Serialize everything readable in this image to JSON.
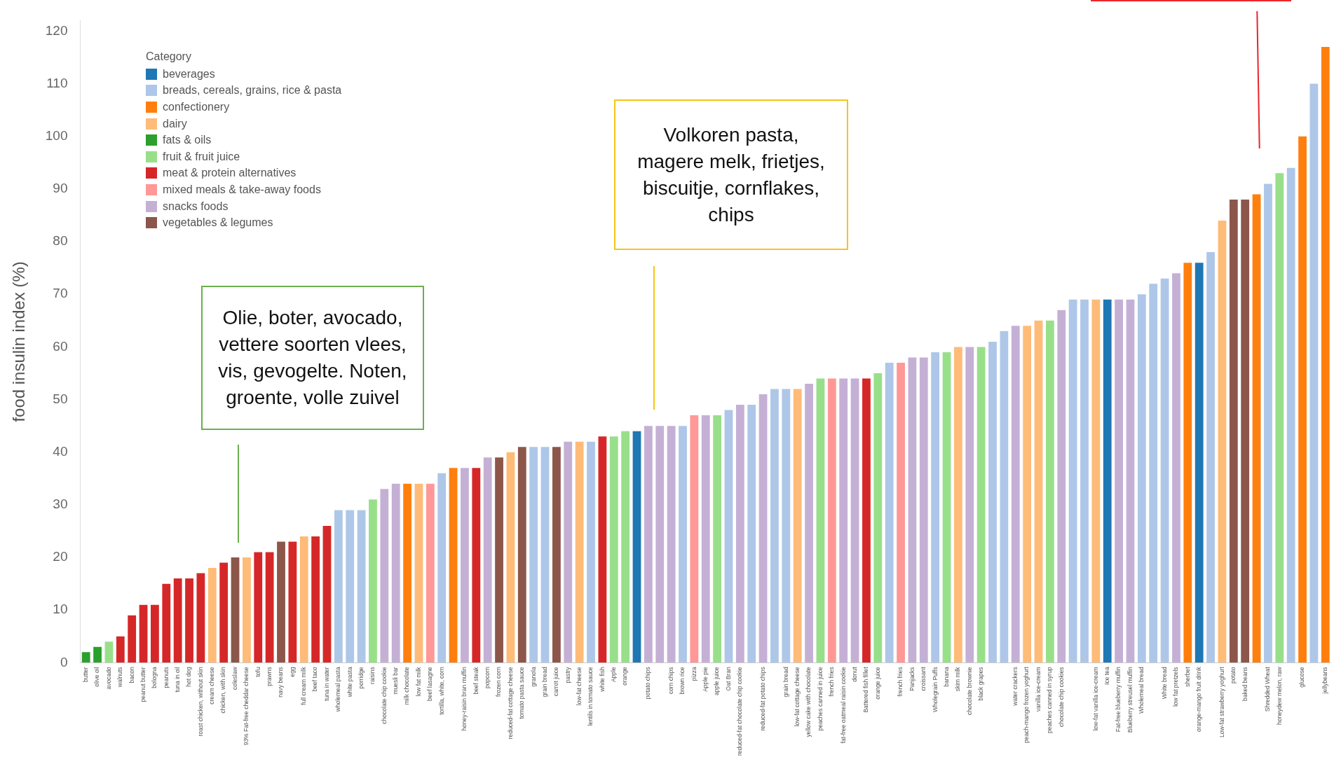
{
  "chart_data": {
    "type": "bar",
    "ylabel": "food insulin index (%)",
    "legend_title": "Category",
    "legend": "top left",
    "grid": false,
    "ylim": [
      0,
      122
    ],
    "yticks": [
      0,
      10,
      20,
      30,
      40,
      50,
      60,
      70,
      80,
      90,
      100,
      110,
      120
    ],
    "categories": [
      "butter",
      "olive oil",
      "avocado",
      "walnuts",
      "bacon",
      "peanut butter",
      "bologna",
      "peanuts",
      "tuna in oil",
      "hot dog",
      "roast chicken, without skin",
      "cream cheese",
      "chicken, with skin",
      "coleslaw",
      "93% Fat-free cheddar cheese",
      "tofu",
      "prawns",
      "navy beans",
      "egg",
      "full cream milk",
      "beef taco",
      "tuna in water",
      "wholemeal pasta",
      "white pasta",
      "porridge",
      "raisins",
      "chocolate chip cookie",
      "muesli bar",
      "milk chocolate",
      "low fat milk",
      "beef lasagne",
      "tortilla, white, corn",
      null,
      "honey-raisin bran muffin",
      "beef steak",
      "popcorn",
      "frozen corn",
      "reduced-fat cottage cheese",
      "tomato pasta sauce",
      "granola",
      "grain bread",
      "carrot juice",
      "pastry",
      "low-fat cheese",
      "lentils in tomato sauce",
      "white fish",
      "Apple",
      "orange",
      null,
      "potato chips",
      null,
      "corn chips",
      "brown rice",
      "pizza",
      "Apple pie",
      "apple juice",
      "Oat Bran",
      "reduced-fat chocolate chip cookie",
      null,
      "reduced-fat potato chips",
      null,
      "grain bread",
      "low-fat cottage cheese",
      "yellow cake with chocolate",
      "peaches canned in juice",
      "french fries",
      "fat-free oatmeal raisin cookie",
      "donut",
      "Battered fish fillet",
      "orange juice",
      null,
      "french fries",
      "Panjacks",
      "croissant",
      "Wholegrain Puffs",
      "banana",
      "skim milk",
      "chocolate brownie",
      "black grapes",
      null,
      null,
      "water crackers",
      "peach-mango frozen yoghurt",
      "vanilla ice-cream",
      "peaches canned in syrup",
      "chocolate chip cookies",
      null,
      null,
      "low-fat vanilla ice-cream",
      "Ice tea",
      "Fat-free blueberry muffin",
      "Blueberry streusel muffin",
      "Wholemeal bread",
      null,
      "White bread",
      "low fat pretzels",
      "sherbet",
      "orange-mango fruit drink",
      null,
      "Low-fat strawberry yoghurt",
      "potato",
      "baked beans",
      null,
      "Shredded Wheat",
      "honeydew melon, raw",
      null,
      "glucose",
      null,
      "jellybeans"
    ],
    "series": [
      {
        "name": "beverages",
        "color": "#1f77b4",
        "values": [
          null,
          null,
          null,
          null,
          null,
          null,
          null,
          null,
          null,
          null,
          null,
          null,
          null,
          null,
          null,
          null,
          null,
          null,
          null,
          null,
          null,
          null,
          null,
          null,
          null,
          null,
          null,
          null,
          null,
          null,
          null,
          null,
          null,
          null,
          null,
          null,
          null,
          null,
          null,
          null,
          null,
          null,
          null,
          null,
          null,
          null,
          null,
          null,
          44,
          null,
          null,
          null,
          null,
          null,
          null,
          null,
          null,
          null,
          null,
          null,
          null,
          null,
          null,
          null,
          null,
          null,
          null,
          null,
          null,
          null,
          null,
          null,
          null,
          null,
          null,
          null,
          null,
          null,
          null,
          null,
          null,
          null,
          null,
          null,
          null,
          null,
          null,
          null,
          null,
          69,
          null,
          null,
          null,
          null,
          null,
          null,
          null,
          76,
          null,
          null,
          null,
          null,
          null,
          null,
          null,
          null,
          null,
          null,
          null
        ]
      },
      {
        "name": "breads, cereals, grains, rice & pasta",
        "color": "#aec7e8",
        "values": [
          null,
          null,
          null,
          null,
          null,
          null,
          null,
          null,
          null,
          null,
          null,
          null,
          null,
          null,
          null,
          null,
          null,
          null,
          null,
          null,
          null,
          null,
          29,
          29,
          29,
          null,
          null,
          null,
          null,
          null,
          null,
          36,
          null,
          null,
          null,
          null,
          null,
          null,
          null,
          41,
          41,
          null,
          null,
          null,
          42,
          null,
          null,
          null,
          null,
          null,
          null,
          null,
          45,
          null,
          null,
          null,
          48,
          null,
          49,
          null,
          52,
          52,
          null,
          null,
          null,
          null,
          null,
          null,
          null,
          null,
          57,
          null,
          null,
          null,
          59,
          null,
          null,
          null,
          null,
          61,
          63,
          null,
          null,
          null,
          null,
          null,
          69,
          69,
          null,
          null,
          null,
          null,
          70,
          72,
          73,
          null,
          null,
          null,
          78,
          null,
          null,
          null,
          null,
          91,
          null,
          94,
          null,
          110,
          null
        ]
      },
      {
        "name": "confectionery",
        "color": "#ff7f0e",
        "values": [
          null,
          null,
          null,
          null,
          null,
          null,
          null,
          null,
          null,
          null,
          null,
          null,
          null,
          null,
          null,
          null,
          null,
          null,
          null,
          null,
          null,
          null,
          null,
          null,
          null,
          null,
          null,
          null,
          34,
          null,
          null,
          null,
          37,
          null,
          null,
          null,
          null,
          null,
          null,
          null,
          null,
          null,
          null,
          null,
          null,
          null,
          null,
          null,
          null,
          null,
          null,
          null,
          null,
          null,
          null,
          null,
          null,
          null,
          null,
          null,
          null,
          null,
          null,
          null,
          null,
          null,
          null,
          null,
          null,
          null,
          null,
          null,
          null,
          null,
          null,
          null,
          null,
          null,
          null,
          null,
          null,
          null,
          null,
          null,
          null,
          null,
          null,
          null,
          null,
          null,
          null,
          null,
          null,
          null,
          null,
          null,
          76,
          null,
          null,
          null,
          null,
          null,
          89,
          null,
          null,
          null,
          100,
          null,
          117
        ]
      },
      {
        "name": "dairy",
        "color": "#ffbb78",
        "values": [
          null,
          null,
          null,
          null,
          null,
          null,
          null,
          null,
          null,
          null,
          null,
          18,
          null,
          null,
          20,
          null,
          null,
          null,
          null,
          24,
          null,
          null,
          null,
          null,
          null,
          null,
          null,
          null,
          null,
          34,
          null,
          null,
          null,
          null,
          null,
          null,
          null,
          40,
          null,
          null,
          null,
          null,
          null,
          42,
          null,
          null,
          null,
          null,
          null,
          null,
          null,
          null,
          null,
          null,
          null,
          null,
          null,
          null,
          null,
          null,
          null,
          null,
          52,
          null,
          null,
          null,
          null,
          null,
          null,
          null,
          null,
          null,
          null,
          null,
          null,
          null,
          60,
          null,
          null,
          null,
          null,
          null,
          64,
          65,
          null,
          null,
          null,
          null,
          69,
          null,
          null,
          null,
          null,
          null,
          null,
          null,
          null,
          null,
          null,
          84,
          null,
          null,
          null,
          null,
          null,
          null,
          null,
          null,
          null
        ]
      },
      {
        "name": "fats & oils",
        "color": "#2ca02c",
        "values": [
          2,
          3,
          null,
          null,
          null,
          null,
          null,
          null,
          null,
          null,
          null,
          null,
          null,
          null,
          null,
          null,
          null,
          null,
          null,
          null,
          null,
          null,
          null,
          null,
          null,
          null,
          null,
          null,
          null,
          null,
          null,
          null,
          null,
          null,
          null,
          null,
          null,
          null,
          null,
          null,
          null,
          null,
          null,
          null,
          null,
          null,
          null,
          null,
          null,
          null,
          null,
          null,
          null,
          null,
          null,
          null,
          null,
          null,
          null,
          null,
          null,
          null,
          null,
          null,
          null,
          null,
          null,
          null,
          null,
          null,
          null,
          null,
          null,
          null,
          null,
          null,
          null,
          null,
          null,
          null,
          null,
          null,
          null,
          null,
          null,
          null,
          null,
          null,
          null,
          null,
          null,
          null,
          null,
          null,
          null,
          null,
          null,
          null,
          null,
          null,
          null,
          null,
          null,
          null,
          null,
          null,
          null,
          null,
          null
        ]
      },
      {
        "name": "fruit & fruit juice",
        "color": "#98df8a",
        "values": [
          null,
          null,
          4,
          null,
          null,
          null,
          null,
          null,
          null,
          null,
          null,
          null,
          null,
          null,
          null,
          null,
          null,
          null,
          null,
          null,
          null,
          null,
          null,
          null,
          null,
          31,
          null,
          null,
          null,
          null,
          null,
          null,
          null,
          null,
          null,
          null,
          null,
          null,
          null,
          null,
          null,
          null,
          null,
          null,
          null,
          null,
          43,
          44,
          null,
          null,
          null,
          null,
          null,
          null,
          null,
          47,
          null,
          null,
          null,
          null,
          null,
          null,
          null,
          null,
          54,
          null,
          null,
          null,
          null,
          55,
          null,
          null,
          null,
          null,
          null,
          59,
          null,
          null,
          60,
          null,
          null,
          null,
          null,
          null,
          65,
          null,
          null,
          null,
          null,
          null,
          null,
          null,
          null,
          null,
          null,
          null,
          null,
          null,
          null,
          null,
          null,
          null,
          null,
          null,
          93,
          null,
          null,
          null,
          null
        ]
      },
      {
        "name": "meat & protein alternatives",
        "color": "#d62728",
        "values": [
          null,
          null,
          null,
          5,
          9,
          11,
          11,
          15,
          16,
          16,
          17,
          null,
          19,
          null,
          null,
          21,
          21,
          null,
          23,
          null,
          24,
          26,
          null,
          null,
          null,
          null,
          null,
          null,
          null,
          null,
          null,
          null,
          null,
          null,
          37,
          null,
          null,
          null,
          null,
          null,
          null,
          null,
          null,
          null,
          null,
          43,
          null,
          null,
          null,
          null,
          null,
          null,
          null,
          null,
          null,
          null,
          null,
          null,
          null,
          null,
          null,
          null,
          null,
          null,
          null,
          null,
          null,
          null,
          54,
          null,
          null,
          null,
          null,
          null,
          null,
          null,
          null,
          null,
          null,
          null,
          null,
          null,
          null,
          null,
          null,
          null,
          null,
          null,
          null,
          null,
          null,
          null,
          null,
          null,
          null,
          null,
          null,
          null,
          null,
          null,
          null,
          null,
          null,
          null,
          null,
          null,
          null,
          null,
          null
        ]
      },
      {
        "name": "mixed meals & take-away foods",
        "color": "#ff9896",
        "values": [
          null,
          null,
          null,
          null,
          null,
          null,
          null,
          null,
          null,
          null,
          null,
          null,
          null,
          null,
          null,
          null,
          null,
          null,
          null,
          null,
          null,
          null,
          null,
          null,
          null,
          null,
          null,
          null,
          null,
          null,
          34,
          null,
          null,
          null,
          null,
          null,
          null,
          null,
          null,
          null,
          null,
          null,
          null,
          null,
          null,
          null,
          null,
          null,
          null,
          null,
          null,
          null,
          null,
          47,
          null,
          null,
          null,
          null,
          null,
          null,
          null,
          null,
          null,
          null,
          null,
          54,
          null,
          null,
          null,
          null,
          null,
          57,
          null,
          null,
          null,
          null,
          null,
          null,
          null,
          null,
          null,
          null,
          null,
          null,
          null,
          null,
          null,
          null,
          null,
          null,
          null,
          null,
          null,
          null,
          null,
          null,
          null,
          null,
          null,
          null,
          null,
          null,
          null,
          null,
          null,
          null,
          null,
          null,
          null
        ]
      },
      {
        "name": "snacks foods",
        "color": "#c5b0d5",
        "values": [
          null,
          null,
          null,
          null,
          null,
          null,
          null,
          null,
          null,
          null,
          null,
          null,
          null,
          null,
          null,
          null,
          null,
          null,
          null,
          null,
          null,
          null,
          null,
          null,
          null,
          null,
          33,
          34,
          null,
          null,
          null,
          null,
          null,
          37,
          null,
          39,
          null,
          null,
          null,
          null,
          null,
          null,
          42,
          null,
          null,
          null,
          null,
          null,
          null,
          45,
          45,
          45,
          null,
          null,
          47,
          null,
          null,
          49,
          null,
          51,
          null,
          null,
          null,
          53,
          null,
          null,
          54,
          54,
          null,
          null,
          null,
          null,
          58,
          58,
          null,
          null,
          null,
          60,
          null,
          null,
          null,
          64,
          null,
          null,
          null,
          67,
          null,
          null,
          null,
          null,
          69,
          69,
          null,
          null,
          null,
          74,
          null,
          null,
          null,
          null,
          null,
          null,
          null,
          null,
          null,
          null,
          null,
          null,
          null
        ]
      },
      {
        "name": "vegetables & legumes",
        "color": "#8c564b",
        "values": [
          null,
          null,
          null,
          null,
          null,
          null,
          null,
          null,
          null,
          null,
          null,
          null,
          null,
          20,
          null,
          null,
          null,
          23,
          null,
          null,
          null,
          null,
          null,
          null,
          null,
          null,
          null,
          null,
          null,
          null,
          null,
          null,
          null,
          null,
          null,
          null,
          39,
          null,
          41,
          null,
          null,
          41,
          null,
          null,
          null,
          null,
          null,
          null,
          null,
          null,
          null,
          null,
          null,
          null,
          null,
          null,
          null,
          null,
          null,
          null,
          null,
          null,
          null,
          null,
          null,
          null,
          null,
          null,
          null,
          null,
          null,
          null,
          null,
          null,
          null,
          null,
          null,
          null,
          null,
          null,
          null,
          null,
          null,
          null,
          null,
          null,
          null,
          null,
          null,
          null,
          null,
          null,
          null,
          null,
          null,
          null,
          null,
          null,
          null,
          null,
          88,
          88,
          null,
          null,
          null,
          null,
          null,
          null,
          null
        ]
      }
    ],
    "annotations": [
      "Olie, boter, avocado, vettere soorten vlees, vis, gevogelte. Noten, groente, volle zuivel",
      "Volkoren pasta, magere melk, frietjes, biscuitje, cornflakes, chips"
    ]
  }
}
